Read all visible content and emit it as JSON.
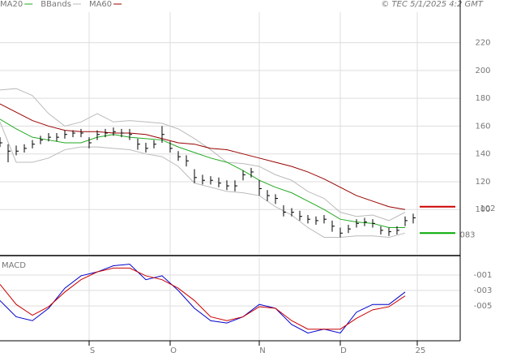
{
  "chart_data": {
    "type": "stock",
    "credit": "© TEC 5/1/2025 4:2 GMT",
    "xlim": [
      0,
      113.6
    ],
    "xticks": [
      {
        "value": 22,
        "label": "S"
      },
      {
        "value": 42,
        "label": "O"
      },
      {
        "value": 64,
        "label": "N"
      },
      {
        "value": 84,
        "label": "D"
      },
      {
        "value": 103,
        "label": "25"
      }
    ],
    "ylim": [
      68,
      242
    ],
    "yticks": [
      {
        "value": 220,
        "label": "220"
      },
      {
        "value": 200,
        "label": "200"
      },
      {
        "value": 180,
        "label": "180"
      },
      {
        "value": 160,
        "label": "160"
      },
      {
        "value": 140,
        "label": "140"
      },
      {
        "value": 120,
        "label": "120"
      },
      {
        "value": 100,
        "label": "100"
      }
    ],
    "grid": true,
    "price": {
      "color": "#000000",
      "x": [
        0,
        2,
        4,
        6,
        8,
        10,
        12,
        14,
        16,
        18,
        20,
        22,
        24,
        26,
        28,
        30,
        32,
        34,
        36,
        38,
        40,
        42,
        44,
        46,
        48,
        50,
        52,
        54,
        56,
        58,
        60,
        62,
        64,
        66,
        68,
        70,
        72,
        74,
        76,
        78,
        80,
        82,
        84,
        86,
        88,
        90,
        92,
        94,
        96,
        98,
        100,
        102
      ],
      "close": [
        148,
        142,
        142,
        144,
        147,
        150,
        152,
        152,
        154,
        155,
        155,
        148,
        154,
        155,
        156,
        155,
        154,
        147,
        144,
        147,
        154,
        144,
        138,
        135,
        123,
        121,
        121,
        119,
        117,
        117,
        125,
        127,
        115,
        110,
        108,
        98,
        98,
        95,
        93,
        92,
        93,
        88,
        83,
        86,
        90,
        91,
        90,
        85,
        84,
        85,
        92,
        94
      ],
      "high": [
        152,
        147,
        146,
        147,
        150,
        153,
        155,
        155,
        157,
        157,
        158,
        152,
        157,
        158,
        159,
        158,
        158,
        151,
        148,
        150,
        160,
        149,
        142,
        139,
        129,
        125,
        124,
        123,
        121,
        121,
        128,
        130,
        121,
        114,
        111,
        103,
        101,
        99,
        96,
        95,
        96,
        92,
        87,
        89,
        93,
        94,
        93,
        88,
        87,
        88,
        95,
        97
      ],
      "low": [
        145,
        134,
        139,
        141,
        144,
        147,
        149,
        149,
        151,
        152,
        152,
        144,
        150,
        152,
        153,
        152,
        150,
        143,
        141,
        144,
        148,
        141,
        135,
        131,
        119,
        118,
        118,
        116,
        114,
        113,
        121,
        123,
        110,
        106,
        104,
        95,
        95,
        92,
        90,
        89,
        90,
        84,
        80,
        83,
        87,
        88,
        87,
        82,
        81,
        82,
        88,
        90
      ]
    },
    "ma_x": [
      0,
      4,
      8,
      12,
      16,
      20,
      24,
      28,
      32,
      36,
      40,
      44,
      48,
      52,
      56,
      60,
      64,
      68,
      72,
      76,
      80,
      84,
      88,
      92,
      96,
      100
    ],
    "series": [
      {
        "name": "MA20",
        "color": "#22aa22",
        "values": [
          165,
          158,
          152,
          150,
          148,
          148,
          152,
          154,
          152,
          151,
          150,
          145,
          141,
          137,
          134,
          128,
          121,
          116,
          112,
          106,
          100,
          93,
          91,
          90,
          87,
          87
        ]
      },
      {
        "name": "MA60",
        "color": "#990000",
        "values": [
          176,
          170,
          164,
          160,
          157,
          156,
          156,
          155,
          155,
          154,
          151,
          148,
          147,
          144,
          143,
          140,
          137,
          134,
          131,
          127,
          122,
          116,
          110,
          106,
          102,
          100
        ]
      }
    ],
    "bbands": {
      "name": "BBands",
      "color": "#bbbbbb",
      "upper": [
        186,
        187,
        182,
        169,
        160,
        163,
        169,
        163,
        164,
        163,
        162,
        158,
        151,
        143,
        134,
        133,
        131,
        125,
        121,
        113,
        108,
        98,
        95,
        96,
        92,
        98
      ],
      "lower": [
        163,
        134,
        134,
        137,
        143,
        145,
        145,
        144,
        143,
        140,
        138,
        131,
        119,
        116,
        113,
        112,
        110,
        102,
        96,
        87,
        80,
        80,
        81,
        81,
        80,
        83
      ]
    },
    "last_markers": [
      {
        "value": 102,
        "label": "102",
        "color": "#cc0000"
      },
      {
        "value": 83,
        "label": "083",
        "color": "#00aa00"
      }
    ],
    "macd": {
      "title": "MACD",
      "ylim": [
        -9.5,
        1.2
      ],
      "yticks": [
        {
          "value": -1,
          "label": "-001"
        },
        {
          "value": -3,
          "label": "-003"
        },
        {
          "value": -5,
          "label": "-005"
        }
      ],
      "series": [
        {
          "color": "#0000cc",
          "values": [
            -4.3,
            -6.4,
            -6.9,
            -5.3,
            -2.7,
            -1.1,
            -0.6,
            0.2,
            0.4,
            -1.6,
            -1.1,
            -3,
            -5.3,
            -6.9,
            -7.2,
            -6.4,
            -4.8,
            -5.3,
            -7.4,
            -8.5,
            -8,
            -8.5,
            -5.8,
            -4.8,
            -4.8,
            -3.2
          ]
        },
        {
          "color": "#cc0000",
          "values": [
            -2.2,
            -4.8,
            -6.2,
            -5.1,
            -3.2,
            -1.6,
            -0.6,
            -0.1,
            -0.1,
            -1.1,
            -1.6,
            -2.7,
            -4.3,
            -6.4,
            -6.9,
            -6.4,
            -5.1,
            -5.3,
            -6.9,
            -8,
            -8,
            -8,
            -6.6,
            -5.5,
            -5.1,
            -3.7
          ]
        }
      ]
    }
  }
}
